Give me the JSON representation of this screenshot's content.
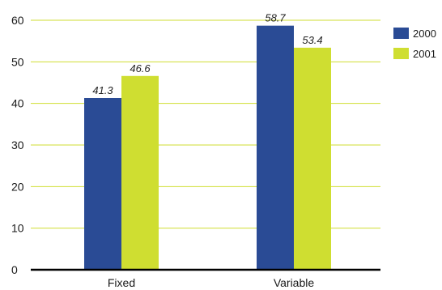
{
  "chart_data": {
    "type": "bar",
    "categories": [
      "Fixed",
      "Variable"
    ],
    "series": [
      {
        "name": "2000",
        "values": [
          41.3,
          58.7
        ],
        "color": "#2a4b95"
      },
      {
        "name": "2001",
        "values": [
          46.6,
          53.4
        ],
        "color": "#cfde31"
      }
    ],
    "data_labels": [
      [
        "41.3",
        "58.7"
      ],
      [
        "46.6",
        "53.4"
      ]
    ],
    "yticks": [
      0,
      10,
      20,
      30,
      40,
      50,
      60
    ],
    "ylim": [
      0,
      60
    ],
    "grid": true,
    "grid_color": "#cfde31",
    "legend_position": "top-right"
  }
}
